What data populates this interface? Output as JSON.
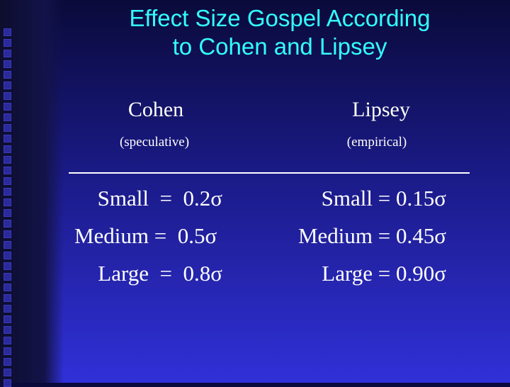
{
  "title_line1": "Effect Size Gospel According",
  "title_line2": "to Cohen and Lipsey",
  "cohen": {
    "heading": "Cohen",
    "subheading": "(speculative)",
    "rows": [
      {
        "label": "Small",
        "eq": "=",
        "value": "0.2σ"
      },
      {
        "label": "Medium",
        "eq": "=",
        "value": "0.5σ"
      },
      {
        "label": "Large",
        "eq": "=",
        "value": "0.8σ"
      }
    ]
  },
  "lipsey": {
    "heading": "Lipsey",
    "subheading": "(empirical)",
    "rows": [
      {
        "label": "Small",
        "eq": "=",
        "value": "0.15σ"
      },
      {
        "label": "Medium",
        "eq": "=",
        "value": "0.45σ"
      },
      {
        "label": "Large",
        "eq": "=",
        "value": "0.90σ"
      }
    ]
  },
  "colors": {
    "title": "#33ffff",
    "text": "#ffffff",
    "background_top": "#0a0a3a",
    "background_bottom": "#3030d8"
  }
}
